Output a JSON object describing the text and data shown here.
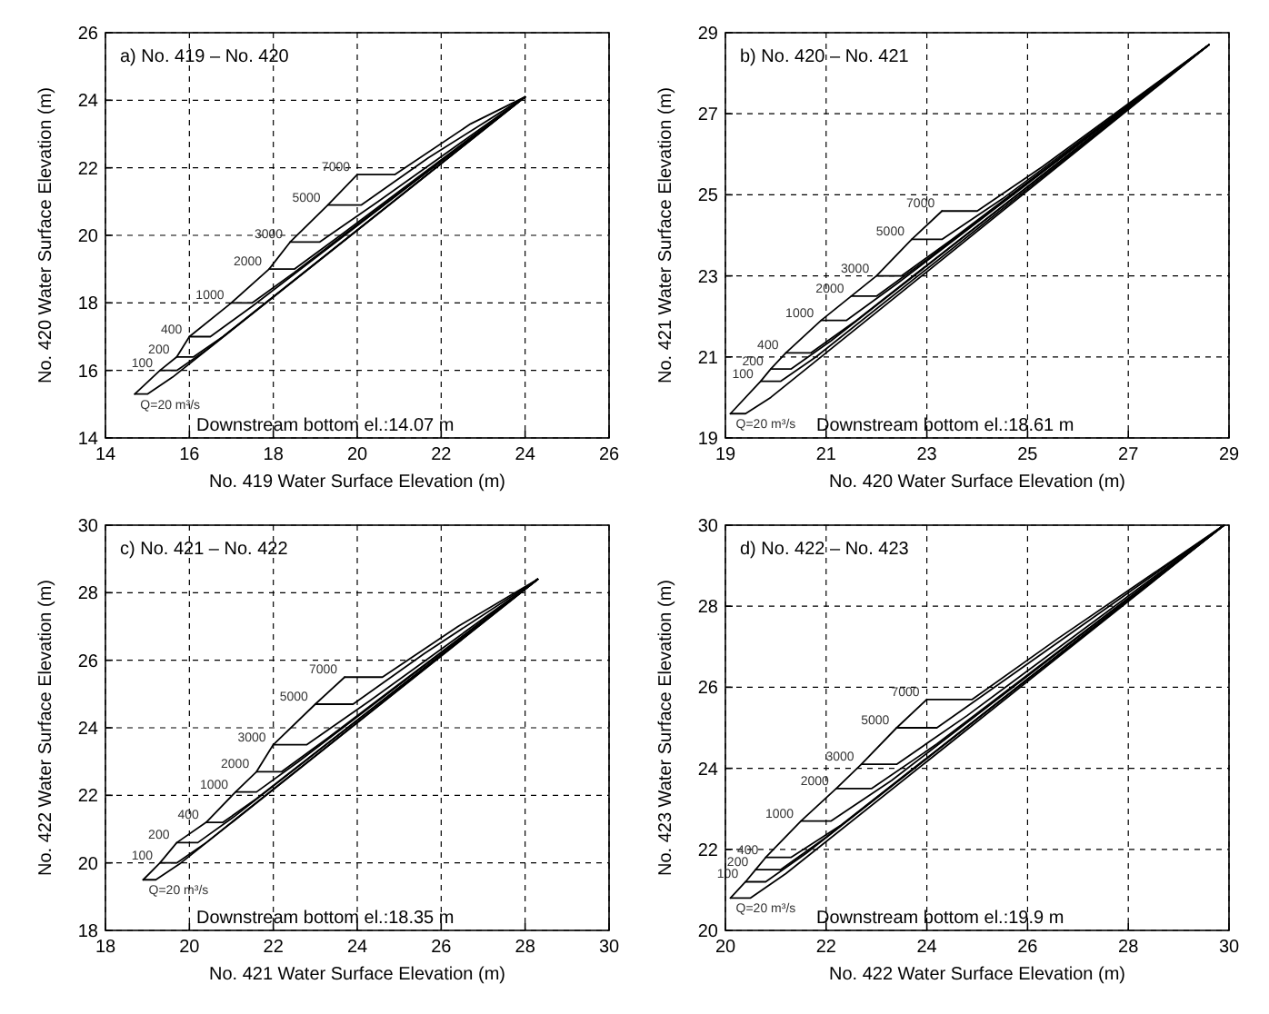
{
  "chart_data": [
    {
      "type": "line",
      "title": "a) No. 419 – No. 420",
      "xlabel": "No. 419  Water Surface Elevation (m)",
      "ylabel": "No. 420  Water Surface Elevation (m)",
      "xlim": [
        14,
        26
      ],
      "ylim": [
        14,
        26
      ],
      "xticks": [
        14,
        16,
        18,
        20,
        22,
        24,
        26
      ],
      "yticks": [
        14,
        16,
        18,
        20,
        22,
        24,
        26
      ],
      "grid": true,
      "annotations": [
        "Downstream bottom el.:14.07 m"
      ],
      "series": [
        {
          "name": "Q=20 m³/s",
          "color": "#000000",
          "x": [
            14.7,
            15.0,
            15.6,
            24
          ],
          "values": [
            15.3,
            15.3,
            15.8,
            24.1
          ]
        },
        {
          "name": "100",
          "color": "#000000",
          "x": [
            15.3,
            15.7,
            16.4,
            24
          ],
          "values": [
            16.0,
            16.0,
            16.6,
            24.1
          ]
        },
        {
          "name": "200",
          "color": "#000000",
          "x": [
            15.7,
            16.1,
            16.8,
            24
          ],
          "values": [
            16.4,
            16.4,
            17.0,
            24.1
          ]
        },
        {
          "name": "400",
          "color": "#000000",
          "x": [
            16.0,
            16.5,
            17.5,
            24
          ],
          "values": [
            17.0,
            17.0,
            17.9,
            24.1
          ]
        },
        {
          "name": "1000",
          "color": "#000000",
          "x": [
            17.0,
            17.5,
            18.5,
            24
          ],
          "values": [
            18.0,
            18.0,
            18.9,
            24.1
          ]
        },
        {
          "name": "2000",
          "color": "#000000",
          "x": [
            17.9,
            18.5,
            19.6,
            24
          ],
          "values": [
            19.0,
            19.0,
            20.0,
            24.1
          ]
        },
        {
          "name": "3000",
          "color": "#000000",
          "x": [
            18.4,
            19.1,
            20.5,
            24
          ],
          "values": [
            19.8,
            19.8,
            21.0,
            24.1
          ]
        },
        {
          "name": "5000",
          "color": "#000000",
          "x": [
            19.3,
            20.1,
            21.7,
            24
          ],
          "values": [
            20.9,
            20.9,
            22.3,
            24.1
          ]
        },
        {
          "name": "7000",
          "color": "#000000",
          "x": [
            20.0,
            20.9,
            22.7,
            24
          ],
          "values": [
            21.8,
            21.8,
            23.3,
            24.1
          ]
        },
        {
          "color": "#000000",
          "x": [
            14.7,
            15.3,
            15.7,
            16.0,
            17.0,
            17.9,
            18.4,
            19.3,
            20.0
          ],
          "values": [
            15.3,
            16.0,
            16.4,
            17.0,
            18.0,
            19.0,
            19.8,
            20.9,
            21.8
          ]
        }
      ]
    },
    {
      "type": "line",
      "title": "b) No. 420 – No. 421",
      "xlabel": "No. 420  Water Surface Elevation (m)",
      "ylabel": "No. 421  Water Surface Elevation (m)",
      "xlim": [
        19,
        29
      ],
      "ylim": [
        19,
        29
      ],
      "xticks": [
        19,
        21,
        23,
        25,
        27,
        29
      ],
      "yticks": [
        19,
        21,
        23,
        25,
        27,
        29
      ],
      "grid": true,
      "annotations": [
        "Downstream bottom el.:18.61 m"
      ],
      "series": [
        {
          "name": "Q=20 m³/s",
          "color": "#000000",
          "x": [
            19.1,
            19.4,
            19.9,
            28.6
          ],
          "values": [
            19.6,
            19.6,
            20.0,
            28.7
          ]
        },
        {
          "name": "100",
          "color": "#000000",
          "x": [
            19.7,
            20.1,
            20.8,
            28.6
          ],
          "values": [
            20.4,
            20.4,
            21.0,
            28.7
          ]
        },
        {
          "name": "200",
          "color": "#000000",
          "x": [
            19.9,
            20.3,
            21.1,
            28.6
          ],
          "values": [
            20.7,
            20.7,
            21.4,
            28.7
          ]
        },
        {
          "name": "400",
          "color": "#000000",
          "x": [
            20.2,
            20.7,
            21.6,
            28.6
          ],
          "values": [
            21.1,
            21.1,
            21.9,
            28.7
          ]
        },
        {
          "name": "1000",
          "color": "#000000",
          "x": [
            20.9,
            21.4,
            22.4,
            28.6
          ],
          "values": [
            21.9,
            21.9,
            22.8,
            28.7
          ]
        },
        {
          "name": "2000",
          "color": "#000000",
          "x": [
            21.5,
            22.0,
            23.0,
            28.6
          ],
          "values": [
            22.5,
            22.5,
            23.4,
            28.7
          ]
        },
        {
          "name": "3000",
          "color": "#000000",
          "x": [
            22.0,
            22.5,
            23.5,
            28.6
          ],
          "values": [
            23.0,
            23.0,
            23.9,
            28.7
          ]
        },
        {
          "name": "5000",
          "color": "#000000",
          "x": [
            22.7,
            23.3,
            24.5,
            28.6
          ],
          "values": [
            23.9,
            23.9,
            24.9,
            28.7
          ]
        },
        {
          "name": "7000",
          "color": "#000000",
          "x": [
            23.3,
            24.0,
            25.3,
            28.6
          ],
          "values": [
            24.6,
            24.6,
            25.7,
            28.7
          ]
        },
        {
          "color": "#000000",
          "x": [
            19.1,
            19.7,
            19.9,
            20.2,
            20.9,
            21.5,
            22.0,
            22.7,
            23.3
          ],
          "values": [
            19.6,
            20.4,
            20.7,
            21.1,
            21.9,
            22.5,
            23.0,
            23.9,
            24.6
          ]
        }
      ]
    },
    {
      "type": "line",
      "title": "c) No. 421 – No. 422",
      "xlabel": "No. 421  Water Surface Elevation (m)",
      "ylabel": "No. 422  Water Surface Elevation (m)",
      "xlim": [
        18,
        30
      ],
      "ylim": [
        18,
        30
      ],
      "xticks": [
        18,
        20,
        22,
        24,
        26,
        28,
        30
      ],
      "yticks": [
        18,
        20,
        22,
        24,
        26,
        28,
        30
      ],
      "grid": true,
      "annotations": [
        "Downstream bottom el.:18.35 m"
      ],
      "series": [
        {
          "name": "Q=20 m³/s",
          "color": "#000000",
          "x": [
            18.9,
            19.2,
            19.8,
            28.3
          ],
          "values": [
            19.5,
            19.5,
            20.0,
            28.4
          ]
        },
        {
          "name": "100",
          "color": "#000000",
          "x": [
            19.3,
            19.7,
            20.4,
            28.3
          ],
          "values": [
            20.0,
            20.0,
            20.6,
            28.4
          ]
        },
        {
          "name": "200",
          "color": "#000000",
          "x": [
            19.7,
            20.2,
            21.1,
            28.3
          ],
          "values": [
            20.6,
            20.6,
            21.4,
            28.4
          ]
        },
        {
          "name": "400",
          "color": "#000000",
          "x": [
            20.4,
            20.8,
            21.6,
            28.3
          ],
          "values": [
            21.2,
            21.2,
            21.9,
            28.4
          ]
        },
        {
          "name": "1000",
          "color": "#000000",
          "x": [
            21.1,
            21.6,
            22.6,
            28.3
          ],
          "values": [
            22.1,
            22.1,
            23.0,
            28.4
          ]
        },
        {
          "name": "2000",
          "color": "#000000",
          "x": [
            21.6,
            22.2,
            23.3,
            28.3
          ],
          "values": [
            22.7,
            22.7,
            23.7,
            28.4
          ]
        },
        {
          "name": "3000",
          "color": "#000000",
          "x": [
            22.0,
            22.8,
            24.3,
            28.3
          ],
          "values": [
            23.5,
            23.5,
            24.8,
            28.4
          ]
        },
        {
          "name": "5000",
          "color": "#000000",
          "x": [
            23.0,
            23.9,
            25.6,
            28.3
          ],
          "values": [
            24.7,
            24.7,
            26.2,
            28.4
          ]
        },
        {
          "name": "7000",
          "color": "#000000",
          "x": [
            23.7,
            24.6,
            26.4,
            28.3
          ],
          "values": [
            25.5,
            25.5,
            27.0,
            28.4
          ]
        },
        {
          "color": "#000000",
          "x": [
            18.9,
            19.3,
            19.7,
            20.4,
            21.1,
            21.6,
            22.0,
            23.0,
            23.7
          ],
          "values": [
            19.5,
            20.0,
            20.6,
            21.2,
            22.1,
            22.7,
            23.5,
            24.7,
            25.5
          ]
        }
      ]
    },
    {
      "type": "line",
      "title": "d) No. 422 – No. 423",
      "xlabel": "No. 422  Water Surface Elevation (m)",
      "ylabel": "No. 423  Water Surface Elevation (m)",
      "xlim": [
        20,
        30
      ],
      "ylim": [
        20,
        30
      ],
      "xticks": [
        20,
        22,
        24,
        26,
        28,
        30
      ],
      "yticks": [
        20,
        22,
        24,
        26,
        28,
        30
      ],
      "grid": true,
      "annotations": [
        "Downstream bottom el.:19.9 m"
      ],
      "series": [
        {
          "name": "Q=20 m³/s",
          "color": "#000000",
          "x": [
            20.1,
            20.5,
            21.2,
            29.9
          ],
          "values": [
            20.8,
            20.8,
            21.4,
            30.0
          ]
        },
        {
          "name": "100",
          "color": "#000000",
          "x": [
            20.4,
            20.8,
            21.6,
            29.9
          ],
          "values": [
            21.2,
            21.2,
            21.9,
            30.0
          ]
        },
        {
          "name": "200",
          "color": "#000000",
          "x": [
            20.6,
            21.1,
            22.0,
            29.9
          ],
          "values": [
            21.5,
            21.5,
            22.3,
            30.0
          ]
        },
        {
          "name": "400",
          "color": "#000000",
          "x": [
            20.8,
            21.3,
            22.3,
            29.9
          ],
          "values": [
            21.8,
            21.8,
            22.6,
            30.0
          ]
        },
        {
          "name": "1000",
          "color": "#000000",
          "x": [
            21.5,
            22.1,
            23.3,
            29.9
          ],
          "values": [
            22.7,
            22.7,
            23.7,
            30.0
          ]
        },
        {
          "name": "2000",
          "color": "#000000",
          "x": [
            22.2,
            22.9,
            24.2,
            29.9
          ],
          "values": [
            23.5,
            23.5,
            24.6,
            30.0
          ]
        },
        {
          "name": "3000",
          "color": "#000000",
          "x": [
            22.7,
            23.4,
            24.8,
            29.9
          ],
          "values": [
            24.1,
            24.1,
            25.3,
            30.0
          ]
        },
        {
          "name": "5000",
          "color": "#000000",
          "x": [
            23.4,
            24.2,
            25.8,
            29.9
          ],
          "values": [
            25.0,
            25.0,
            26.4,
            30.0
          ]
        },
        {
          "name": "7000",
          "color": "#000000",
          "x": [
            24.0,
            24.9,
            26.6,
            29.9
          ],
          "values": [
            25.7,
            25.7,
            27.2,
            30.0
          ]
        },
        {
          "color": "#000000",
          "x": [
            20.1,
            20.4,
            20.6,
            20.8,
            21.5,
            22.2,
            22.7,
            23.4,
            24.0
          ],
          "values": [
            20.8,
            21.2,
            21.5,
            21.8,
            22.7,
            23.5,
            24.1,
            25.0,
            25.7
          ]
        }
      ]
    }
  ]
}
